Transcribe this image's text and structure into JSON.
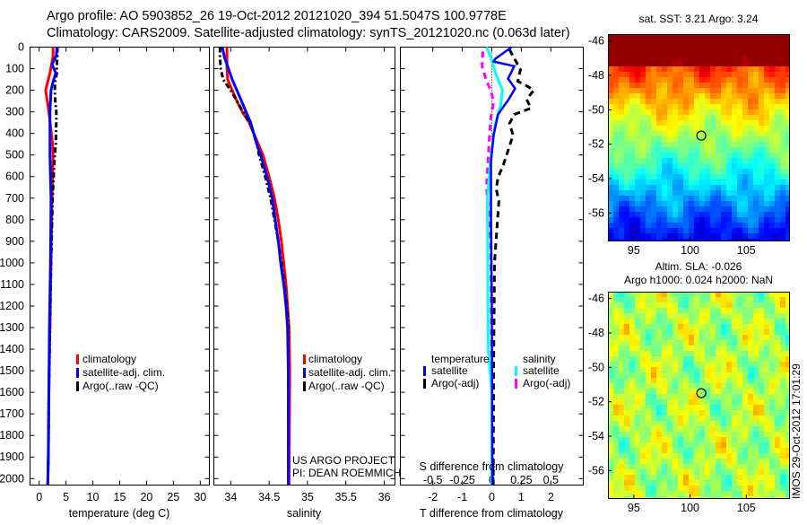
{
  "header": {
    "line1": "Argo profile: AO 5903852_26 19-Oct-2012 20121020_394 51.5047S 100.9778E",
    "line2": "Climatology: CARS2009. Satellite-adjusted climatology: synTS_20121020.nc (0.063d later)"
  },
  "colors": {
    "climatology": "#ff0000",
    "satellite": "#0000ff",
    "argo": "#000000",
    "sal_satellite": "#00ffff",
    "sal_argo": "#ff00ff"
  },
  "chart_data": [
    {
      "type": "line",
      "title": "",
      "xlabel": "temperature (deg C)",
      "ylabel": "",
      "xlim": [
        -1.7,
        31.7
      ],
      "ylim": [
        2030,
        0
      ],
      "xticks": [
        "0",
        "5",
        "10",
        "15",
        "20",
        "25",
        "30"
      ],
      "yticks": [
        "0",
        "100",
        "200",
        "300",
        "400",
        "500",
        "600",
        "700",
        "800",
        "900",
        "1000",
        "1100",
        "1200",
        "1300",
        "1400",
        "1500",
        "1600",
        "1700",
        "1800",
        "1900",
        "2000"
      ],
      "depth": [
        0,
        40,
        80,
        120,
        160,
        200,
        250,
        300,
        340,
        450,
        500,
        700,
        1000,
        1300,
        1600,
        1900,
        2030
      ],
      "series": [
        {
          "name": "climatology",
          "values": [
            2.6,
            2.6,
            2.3,
            2.0,
            1.6,
            1.2,
            1.5,
            1.8,
            2.0,
            2.5,
            2.6,
            2.4,
            2.2,
            2.0,
            1.8,
            1.7,
            1.6
          ]
        },
        {
          "name": "satellite-adj. clim.",
          "values": [
            3.3,
            3.2,
            2.4,
            3.1,
            2.6,
            2.2,
            2.1,
            2.0,
            2.0,
            2.0,
            2.0,
            2.2,
            2.1,
            1.9,
            1.8,
            1.7,
            1.6
          ]
        },
        {
          "name": "Argo(..raw -QC)",
          "values": [
            3.4,
            3.4,
            3.3,
            3.3,
            3.0,
            2.9,
            3.0,
            3.2,
            3.2,
            3.1,
            2.9,
            2.5,
            2.2,
            2.0,
            1.8,
            1.7,
            1.6
          ]
        }
      ],
      "legend": "center-left"
    },
    {
      "type": "line",
      "xlabel": "salinity",
      "xlim": [
        33.78,
        36.14
      ],
      "ylim": [
        2030,
        0
      ],
      "xticks": [
        "34",
        "34.5",
        "35",
        "35.5",
        "36"
      ],
      "depth": [
        0,
        50,
        100,
        150,
        200,
        250,
        300,
        350,
        400,
        450,
        500,
        600,
        700,
        800,
        900,
        1000,
        1100,
        1200,
        1300,
        1500,
        2030
      ],
      "series": [
        {
          "name": "climatology",
          "values": [
            33.95,
            33.95,
            33.95,
            33.96,
            34.02,
            34.08,
            34.15,
            34.24,
            34.3,
            34.36,
            34.42,
            34.5,
            34.57,
            34.62,
            34.66,
            34.69,
            34.72,
            34.74,
            34.76,
            34.77,
            34.76
          ]
        },
        {
          "name": "satellite-adj. clim.",
          "values": [
            33.89,
            33.92,
            33.97,
            34.02,
            34.08,
            34.14,
            34.2,
            34.26,
            34.3,
            34.34,
            34.39,
            34.47,
            34.54,
            34.58,
            34.62,
            34.65,
            34.69,
            34.72,
            34.74,
            34.75,
            34.75
          ]
        },
        {
          "name": "Argo(..raw -QC)",
          "values": [
            33.86,
            33.86,
            33.87,
            33.9,
            34.0,
            34.08,
            34.16,
            34.25,
            34.3,
            34.34,
            34.37,
            34.45,
            34.52,
            34.57,
            34.62,
            34.66,
            34.7,
            34.73,
            34.75,
            34.75,
            34.75
          ]
        }
      ],
      "annotation": [
        "US ARGO PROJECT",
        "PI: DEAN ROEMMICH"
      ],
      "legend": "center-left"
    },
    {
      "type": "line",
      "xlabel": "T difference from climatology",
      "xlabel2": "S difference from climatology",
      "xlim": [
        -3.1,
        3.1
      ],
      "ylim": [
        2030,
        0
      ],
      "xticks": [
        "-2",
        "-1",
        "0",
        "1",
        "2"
      ],
      "xticks2": [
        "-0.5",
        "-0.25",
        "0",
        "0.25",
        "0.5"
      ],
      "legend_groups": [
        "temperature",
        "salinity"
      ],
      "series": [
        {
          "name": "satellite",
          "group": "temperature",
          "depth": [
            0,
            54,
            67,
            88,
            146,
            192,
            242,
            312,
            408,
            533,
            783,
            1200,
            2030
          ],
          "values": [
            0.67,
            0.12,
            0.06,
            0.76,
            0.55,
            0.79,
            0.57,
            0.21,
            0.06,
            -0.03,
            -0.03,
            0.0,
            0.02
          ]
        },
        {
          "name": "Argo(-adj)",
          "group": "temperature",
          "depth": [
            12,
            104,
            158,
            179,
            200,
            242,
            283,
            312,
            354,
            408,
            492,
            546,
            604,
            658,
            712,
            771,
            1000,
            1500,
            2030
          ],
          "values": [
            0.6,
            0.97,
            0.88,
            1.18,
            1.42,
            1.18,
            1.33,
            0.76,
            0.6,
            0.72,
            0.52,
            0.39,
            0.21,
            0.15,
            0.24,
            0.21,
            0.09,
            0.06,
            0.05
          ]
        },
        {
          "name": "satellite",
          "group": "salinity",
          "depth": [
            0,
            46,
            129,
            200,
            271,
            354,
            504,
            712,
            1400,
            1600,
            2030
          ],
          "values": [
            -0.045,
            -0.008,
            0.038,
            0.09,
            0.076,
            0.03,
            -0.008,
            -0.038,
            -0.03,
            0.0,
            0.0
          ]
        },
        {
          "name": "Argo(-adj)",
          "group": "salinity",
          "depth": [
            20,
            88,
            158,
            200,
            254,
            325,
            437,
            646,
            900,
            1500,
            2030
          ],
          "values": [
            -0.076,
            -0.083,
            -0.045,
            -0.008,
            0.015,
            -0.008,
            -0.023,
            -0.045,
            -0.01,
            0.0,
            0.0
          ]
        }
      ]
    },
    {
      "type": "heatmap",
      "title": "sat. SST: 3.21 Argo: 3.24",
      "xticks": [
        "95",
        "100",
        "105"
      ],
      "yticks": [
        "-46",
        "-48",
        "-50",
        "-52",
        "-54",
        "-56"
      ],
      "xlim": [
        92.7,
        108.8
      ],
      "ylim": [
        -57.6,
        -45.6
      ],
      "marker": {
        "lon": 101.0,
        "lat": -51.5
      }
    },
    {
      "type": "heatmap",
      "title": [
        "Altim. SLA: -0.026",
        "Argo h1000: 0.024 h2000: NaN"
      ],
      "xticks": [
        "95",
        "100",
        "105"
      ],
      "yticks": [
        "-46",
        "-48",
        "-50",
        "-52",
        "-54",
        "-56"
      ],
      "xlim": [
        92.7,
        108.8
      ],
      "ylim": [
        -57.6,
        -45.6
      ],
      "marker": {
        "lon": 101.0,
        "lat": -51.5
      }
    }
  ],
  "legends": {
    "profile": [
      "climatology",
      "satellite-adj. clim.",
      "Argo(..raw -QC)"
    ],
    "diff_temp_title": "temperature",
    "diff_sal_title": "salinity",
    "diff_items": [
      "satellite",
      "Argo(-adj)"
    ]
  },
  "footer_stamp": "IMOS 29-Oct-2012 17:01:29"
}
